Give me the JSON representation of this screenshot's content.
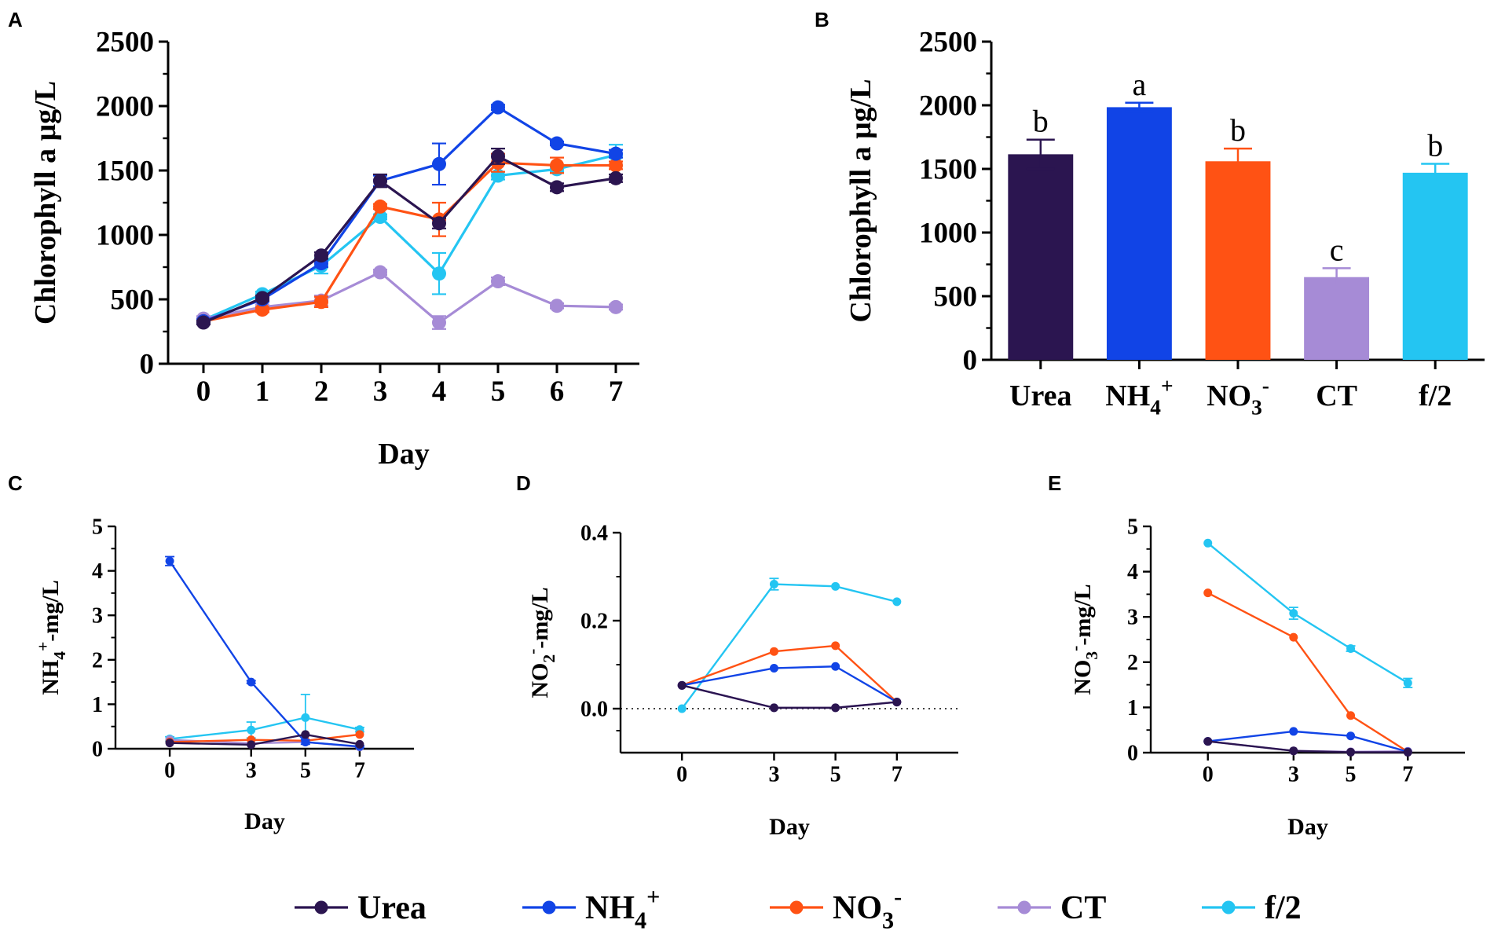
{
  "colors": {
    "Urea": "#2b1550",
    "NH4+": "#1144e6",
    "NO3-": "#ff5214",
    "CT": "#a68bd6",
    "f/2": "#24c5f2"
  },
  "legend": [
    {
      "key": "Urea",
      "parts": [
        {
          "t": "Urea"
        }
      ]
    },
    {
      "key": "NH4+",
      "parts": [
        {
          "t": "NH"
        },
        {
          "t": "4",
          "sub": true
        },
        {
          "t": "+",
          "sup": true
        }
      ]
    },
    {
      "key": "NO3-",
      "parts": [
        {
          "t": "NO"
        },
        {
          "t": "3",
          "sub": true
        },
        {
          "t": "-",
          "sup": true
        }
      ]
    },
    {
      "key": "CT",
      "parts": [
        {
          "t": "CT"
        }
      ]
    },
    {
      "key": "f/2",
      "parts": [
        {
          "t": "f/2"
        }
      ]
    }
  ],
  "chart_data": [
    {
      "panel": "A",
      "type": "line",
      "xlabel": "Day",
      "ylabel": "Chlorophyll a μg/L",
      "ylim": [
        0,
        2500
      ],
      "yticks": [
        0,
        500,
        1000,
        1500,
        2000,
        2500
      ],
      "x": [
        0,
        1,
        2,
        3,
        4,
        5,
        6,
        7
      ],
      "series": [
        {
          "name": "Urea",
          "values": [
            320,
            510,
            840,
            1420,
            1090,
            1610,
            1370,
            1440
          ],
          "err": [
            15,
            20,
            25,
            50,
            40,
            60,
            30,
            30
          ]
        },
        {
          "name": "NH4+",
          "values": [
            330,
            500,
            780,
            1420,
            1550,
            1990,
            1710,
            1630
          ],
          "err": [
            15,
            20,
            30,
            40,
            160,
            20,
            15,
            30
          ]
        },
        {
          "name": "NO3-",
          "values": [
            330,
            420,
            480,
            1220,
            1120,
            1560,
            1540,
            1540
          ],
          "err": [
            15,
            20,
            40,
            20,
            130,
            70,
            60,
            30
          ]
        },
        {
          "name": "CT",
          "values": [
            350,
            440,
            490,
            710,
            320,
            640,
            450,
            440
          ],
          "err": [
            20,
            20,
            40,
            20,
            50,
            30,
            20,
            20
          ]
        },
        {
          "name": "f/2",
          "values": [
            340,
            540,
            760,
            1140,
            700,
            1460,
            1510,
            1620
          ],
          "err": [
            15,
            20,
            60,
            20,
            160,
            30,
            20,
            80
          ]
        }
      ]
    },
    {
      "panel": "B",
      "type": "bar",
      "ylabel": "Chlorophyll a μg/L",
      "ylim": [
        0,
        2500
      ],
      "yticks": [
        0,
        500,
        1000,
        1500,
        2000,
        2500
      ],
      "categories": [
        "Urea",
        "NH4+",
        "NO3-",
        "CT",
        "f/2"
      ],
      "category_labels": [
        [
          {
            "t": "Urea"
          }
        ],
        [
          {
            "t": "NH"
          },
          {
            "t": "4",
            "sub": true
          },
          {
            "t": "+",
            "sup": true
          }
        ],
        [
          {
            "t": "NO"
          },
          {
            "t": "3",
            "sub": true
          },
          {
            "t": "-",
            "sup": true
          }
        ],
        [
          {
            "t": "CT"
          }
        ],
        [
          {
            "t": "f/2"
          }
        ]
      ],
      "values": [
        1615,
        1985,
        1560,
        650,
        1470
      ],
      "err": [
        115,
        35,
        100,
        70,
        70
      ],
      "annotations": [
        "b",
        "a",
        "b",
        "c",
        "b"
      ]
    },
    {
      "panel": "C",
      "type": "line",
      "xlabel": "Day",
      "ylabel_parts": [
        {
          "t": "NH"
        },
        {
          "t": "4",
          "sub": true
        },
        {
          "t": "+",
          "sup": true
        },
        {
          "t": "-mg/L"
        }
      ],
      "ylim": [
        0,
        5
      ],
      "yticks": [
        0,
        1,
        2,
        3,
        4,
        5
      ],
      "x": [
        0,
        3,
        5,
        7
      ],
      "xlim": [
        -2,
        9
      ],
      "series": [
        {
          "name": "Urea",
          "values": [
            0.13,
            0.09,
            0.32,
            0.1
          ],
          "err": [
            0,
            0,
            0,
            0
          ]
        },
        {
          "name": "NH4+",
          "values": [
            4.22,
            1.5,
            0.15,
            0.05
          ],
          "err": [
            0.1,
            0.03,
            0.05,
            0.02
          ]
        },
        {
          "name": "NO3-",
          "values": [
            0.15,
            0.2,
            0.18,
            0.32
          ],
          "err": [
            0,
            0,
            0,
            0
          ]
        },
        {
          "name": "CT",
          "values": [
            0.2,
            0.12,
            0.15,
            0.04
          ],
          "err": [
            0,
            0,
            0,
            0
          ]
        },
        {
          "name": "f/2",
          "values": [
            0.22,
            0.42,
            0.7,
            0.43
          ],
          "err": [
            0.05,
            0.18,
            0.52,
            0.05
          ]
        }
      ]
    },
    {
      "panel": "D",
      "type": "line",
      "xlabel": "Day",
      "ylabel_parts": [
        {
          "t": "NO"
        },
        {
          "t": "2",
          "sub": true
        },
        {
          "t": "-",
          "sup": true
        },
        {
          "t": "-mg/L"
        }
      ],
      "ylim": [
        -0.1,
        0.4
      ],
      "yticks": [
        0.0,
        0.2,
        0.4
      ],
      "ytick_labels": [
        "0.0",
        "0.2",
        "0.4"
      ],
      "zero_line": true,
      "x": [
        0,
        3,
        5,
        7
      ],
      "xlim": [
        -2,
        9
      ],
      "series": [
        {
          "name": "Urea",
          "values": [
            0.053,
            0.002,
            0.002,
            0.015
          ],
          "err": [
            0,
            0,
            0,
            0
          ]
        },
        {
          "name": "NH4+",
          "values": [
            0.053,
            0.092,
            0.096,
            0.015
          ],
          "err": [
            0,
            0,
            0,
            0
          ]
        },
        {
          "name": "NO3-",
          "values": [
            0.053,
            0.13,
            0.143,
            0.015
          ],
          "err": [
            0,
            0,
            0,
            0
          ]
        },
        {
          "name": "CT",
          "values": [
            0.053,
            0.002,
            0.002,
            0.015
          ],
          "err": [
            0,
            0,
            0,
            0
          ]
        },
        {
          "name": "f/2",
          "values": [
            0.0,
            0.283,
            0.278,
            0.243
          ],
          "err": [
            0,
            0.013,
            0,
            0
          ]
        }
      ]
    },
    {
      "panel": "E",
      "type": "line",
      "xlabel": "Day",
      "ylabel_parts": [
        {
          "t": "NO"
        },
        {
          "t": "3",
          "sub": true
        },
        {
          "t": "-",
          "sup": true
        },
        {
          "t": "-mg/L"
        }
      ],
      "ylim": [
        0,
        5
      ],
      "yticks": [
        0,
        1,
        2,
        3,
        4,
        5
      ],
      "x": [
        0,
        3,
        5,
        7
      ],
      "xlim": [
        -2,
        9
      ],
      "series": [
        {
          "name": "Urea",
          "values": [
            0.25,
            0.04,
            0.01,
            0.01
          ],
          "err": [
            0,
            0,
            0,
            0
          ]
        },
        {
          "name": "NH4+",
          "values": [
            0.25,
            0.47,
            0.37,
            0.02
          ],
          "err": [
            0,
            0,
            0,
            0
          ]
        },
        {
          "name": "NO3-",
          "values": [
            3.53,
            2.55,
            0.82,
            0.02
          ],
          "err": [
            0,
            0,
            0,
            0
          ]
        },
        {
          "name": "CT",
          "values": [
            0.25,
            0.04,
            0.02,
            0.03
          ],
          "err": [
            0,
            0,
            0,
            0
          ]
        },
        {
          "name": "f/2",
          "values": [
            4.63,
            3.08,
            2.3,
            1.54
          ],
          "err": [
            0,
            0.13,
            0.06,
            0.1
          ]
        }
      ]
    }
  ]
}
